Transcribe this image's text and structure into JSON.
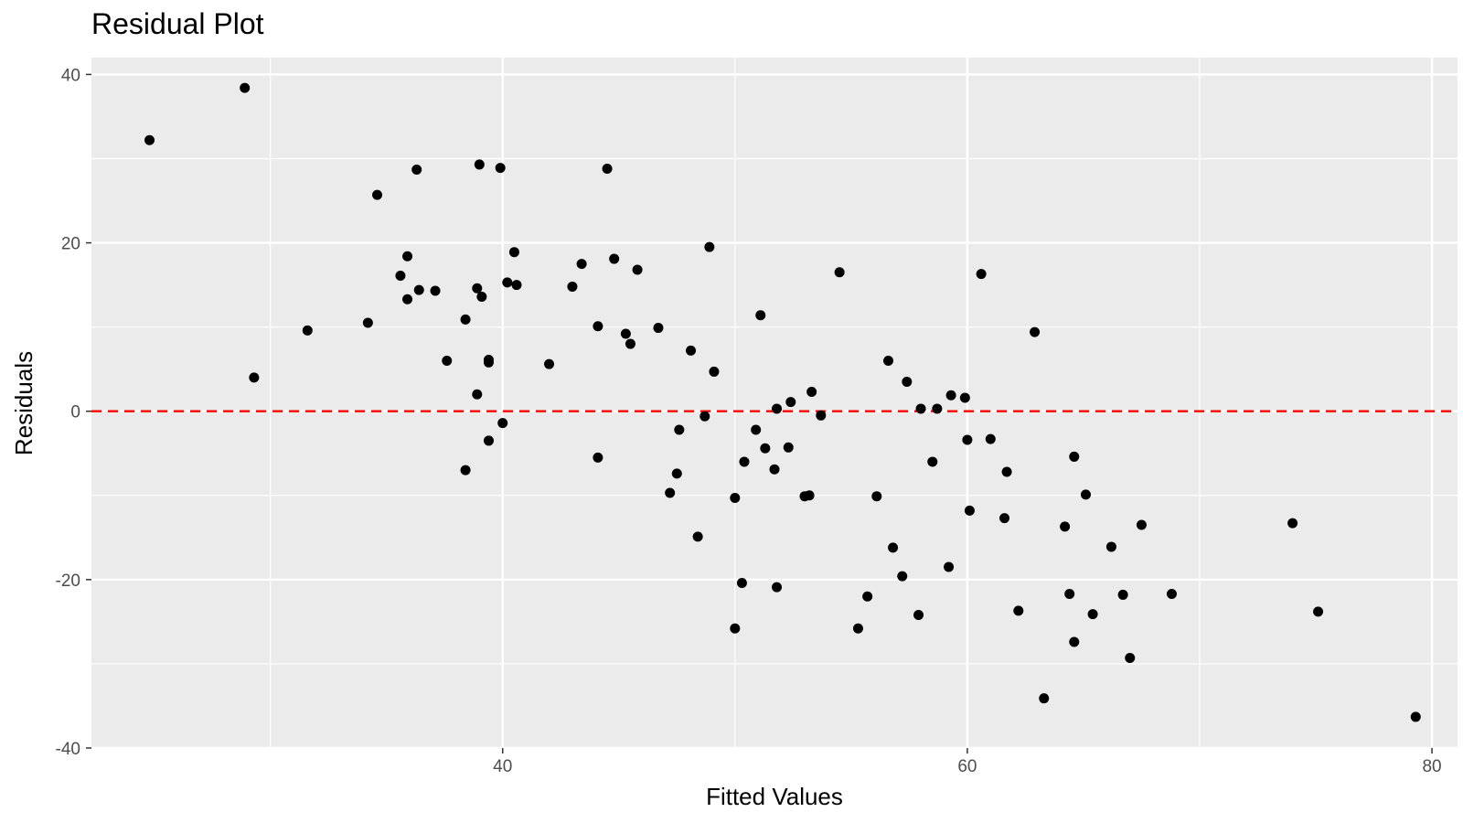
{
  "chart_data": {
    "type": "scatter",
    "title": "Residual Plot",
    "xlabel": "Fitted Values",
    "ylabel": "Residuals",
    "xlim": [
      22.3,
      81.1
    ],
    "ylim": [
      -40,
      42
    ],
    "x_ticks": [
      40,
      60,
      80
    ],
    "y_ticks": [
      -40,
      -20,
      0,
      20,
      40
    ],
    "grid": true,
    "reference_line": {
      "y": 0,
      "style": "dashed",
      "color": "#ff0000"
    },
    "point_color": "#000000",
    "panel_background": "#ebebeb",
    "points": [
      {
        "x": 24.8,
        "y": 32.2
      },
      {
        "x": 28.9,
        "y": 38.4
      },
      {
        "x": 29.3,
        "y": 4.0
      },
      {
        "x": 31.6,
        "y": 9.6
      },
      {
        "x": 34.2,
        "y": 10.5
      },
      {
        "x": 34.6,
        "y": 25.7
      },
      {
        "x": 35.6,
        "y": 16.1
      },
      {
        "x": 35.9,
        "y": 18.4
      },
      {
        "x": 35.9,
        "y": 13.3
      },
      {
        "x": 36.3,
        "y": 28.7
      },
      {
        "x": 36.4,
        "y": 14.4
      },
      {
        "x": 37.1,
        "y": 14.3
      },
      {
        "x": 37.6,
        "y": 6.0
      },
      {
        "x": 38.4,
        "y": 10.9
      },
      {
        "x": 38.4,
        "y": -7.0
      },
      {
        "x": 38.9,
        "y": 14.6
      },
      {
        "x": 38.9,
        "y": 2.0
      },
      {
        "x": 39.0,
        "y": 29.3
      },
      {
        "x": 39.1,
        "y": 13.6
      },
      {
        "x": 39.4,
        "y": 6.1
      },
      {
        "x": 39.4,
        "y": 5.8
      },
      {
        "x": 39.4,
        "y": -3.5
      },
      {
        "x": 39.9,
        "y": 28.9
      },
      {
        "x": 40.0,
        "y": -1.4
      },
      {
        "x": 40.2,
        "y": 15.3
      },
      {
        "x": 40.5,
        "y": 18.9
      },
      {
        "x": 40.6,
        "y": 15.0
      },
      {
        "x": 42.0,
        "y": 5.6
      },
      {
        "x": 43.0,
        "y": 14.8
      },
      {
        "x": 43.4,
        "y": 17.5
      },
      {
        "x": 44.1,
        "y": 10.1
      },
      {
        "x": 44.1,
        "y": -5.5
      },
      {
        "x": 44.5,
        "y": 28.8
      },
      {
        "x": 44.8,
        "y": 18.1
      },
      {
        "x": 45.3,
        "y": 9.2
      },
      {
        "x": 45.5,
        "y": 8.0
      },
      {
        "x": 45.8,
        "y": 16.8
      },
      {
        "x": 46.7,
        "y": 9.9
      },
      {
        "x": 47.2,
        "y": -9.7
      },
      {
        "x": 47.5,
        "y": -7.4
      },
      {
        "x": 47.6,
        "y": -2.2
      },
      {
        "x": 48.1,
        "y": 7.2
      },
      {
        "x": 48.4,
        "y": -14.9
      },
      {
        "x": 48.7,
        "y": -0.6
      },
      {
        "x": 48.9,
        "y": 19.5
      },
      {
        "x": 49.1,
        "y": 4.7
      },
      {
        "x": 50.0,
        "y": -25.8
      },
      {
        "x": 50.0,
        "y": -10.3
      },
      {
        "x": 50.3,
        "y": -20.4
      },
      {
        "x": 50.4,
        "y": -6.0
      },
      {
        "x": 50.9,
        "y": -2.2
      },
      {
        "x": 51.1,
        "y": 11.4
      },
      {
        "x": 51.3,
        "y": -4.4
      },
      {
        "x": 51.7,
        "y": -6.9
      },
      {
        "x": 51.8,
        "y": -20.9
      },
      {
        "x": 51.8,
        "y": 0.3
      },
      {
        "x": 52.3,
        "y": -4.3
      },
      {
        "x": 52.4,
        "y": 1.1
      },
      {
        "x": 53.0,
        "y": -10.1
      },
      {
        "x": 53.2,
        "y": -10.0
      },
      {
        "x": 53.3,
        "y": 2.3
      },
      {
        "x": 53.7,
        "y": -0.5
      },
      {
        "x": 54.5,
        "y": 16.5
      },
      {
        "x": 55.3,
        "y": -25.8
      },
      {
        "x": 55.7,
        "y": -22.0
      },
      {
        "x": 56.1,
        "y": -10.1
      },
      {
        "x": 56.6,
        "y": 6.0
      },
      {
        "x": 56.8,
        "y": -16.2
      },
      {
        "x": 57.2,
        "y": -19.6
      },
      {
        "x": 57.4,
        "y": 3.5
      },
      {
        "x": 57.9,
        "y": -24.2
      },
      {
        "x": 58.0,
        "y": 0.3
      },
      {
        "x": 58.5,
        "y": -6.0
      },
      {
        "x": 58.7,
        "y": 0.3
      },
      {
        "x": 59.2,
        "y": -18.5
      },
      {
        "x": 59.3,
        "y": 1.9
      },
      {
        "x": 59.9,
        "y": 1.6
      },
      {
        "x": 60.0,
        "y": -3.4
      },
      {
        "x": 60.1,
        "y": -11.8
      },
      {
        "x": 60.6,
        "y": 16.3
      },
      {
        "x": 61.0,
        "y": -3.3
      },
      {
        "x": 61.6,
        "y": -12.7
      },
      {
        "x": 61.7,
        "y": -7.2
      },
      {
        "x": 62.2,
        "y": -23.7
      },
      {
        "x": 62.9,
        "y": 9.4
      },
      {
        "x": 63.3,
        "y": -34.1
      },
      {
        "x": 64.2,
        "y": -13.7
      },
      {
        "x": 64.4,
        "y": -21.7
      },
      {
        "x": 64.6,
        "y": -5.4
      },
      {
        "x": 64.6,
        "y": -27.4
      },
      {
        "x": 65.1,
        "y": -9.9
      },
      {
        "x": 65.4,
        "y": -24.1
      },
      {
        "x": 66.2,
        "y": -16.1
      },
      {
        "x": 66.7,
        "y": -21.8
      },
      {
        "x": 67.0,
        "y": -29.3
      },
      {
        "x": 67.5,
        "y": -13.5
      },
      {
        "x": 68.8,
        "y": -21.7
      },
      {
        "x": 74.0,
        "y": -13.3
      },
      {
        "x": 75.1,
        "y": -23.8
      },
      {
        "x": 79.3,
        "y": -36.3
      }
    ]
  }
}
